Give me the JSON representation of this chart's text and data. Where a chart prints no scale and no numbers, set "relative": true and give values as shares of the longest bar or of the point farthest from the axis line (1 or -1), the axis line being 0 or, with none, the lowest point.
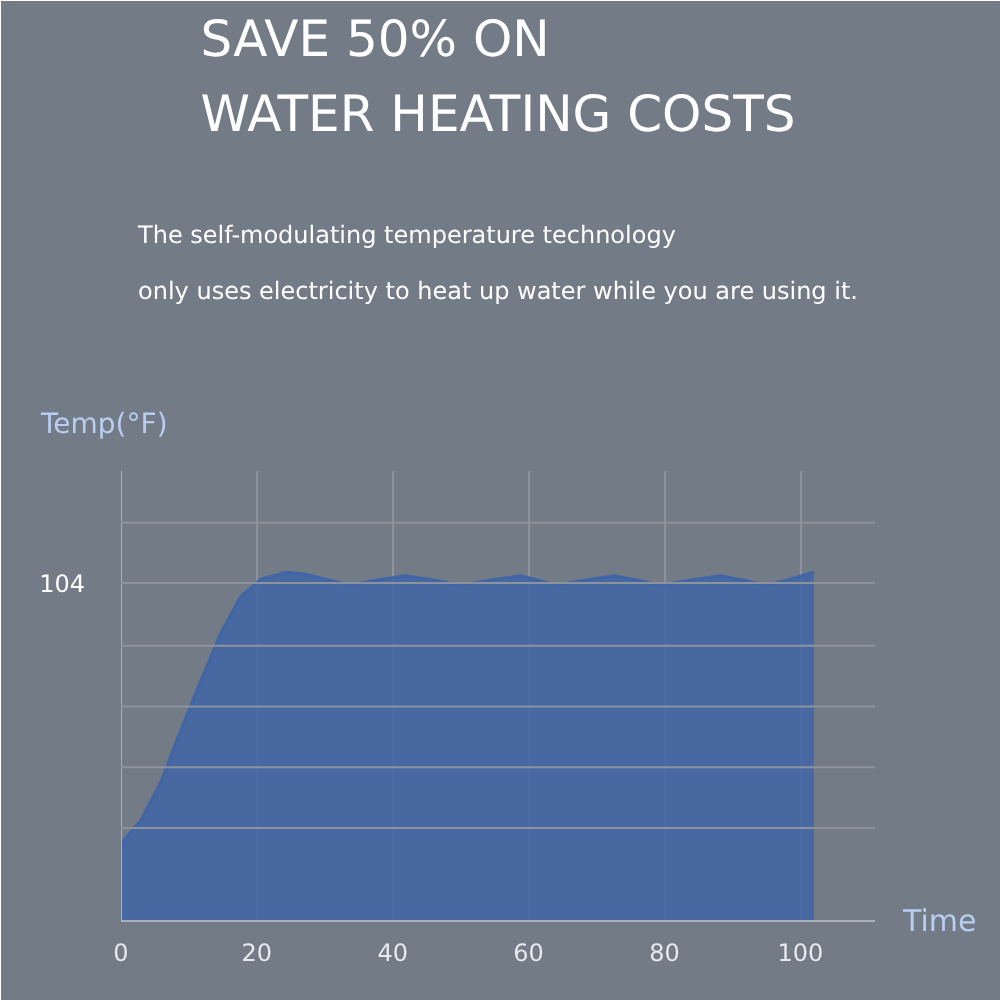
{
  "chart_data": {
    "type": "area",
    "title": "SAVE 50% ON\nWATER HEATING COSTS",
    "subtitle": "The self-modulating temperature technology\nonly uses electricity to heat up water while you are using it.",
    "xlabel": "Time",
    "ylabel": "Temp(°F)",
    "relative": true,
    "x": [
      0,
      2.9,
      5.9,
      8.8,
      11.8,
      14.7,
      17.6,
      20.6,
      24.4,
      27,
      30.5,
      33.8,
      37.8,
      41.8,
      45.9,
      50,
      54.4,
      58.8,
      61.4,
      64,
      68.3,
      72.6,
      76,
      79.4,
      83.8,
      88.2,
      91.6,
      95,
      98.5,
      102
    ],
    "series": [
      {
        "color": "#4065a6",
        "values": [
          0.222,
          0.288,
          0.4,
          0.547,
          0.69,
          0.826,
          0.93,
          0.98,
          1.0,
          0.995,
          0.978,
          0.963,
          0.978,
          0.99,
          0.978,
          0.963,
          0.977,
          0.99,
          0.977,
          0.963,
          0.977,
          0.99,
          0.977,
          0.963,
          0.977,
          0.99,
          0.977,
          0.963,
          0.98,
          1.0
        ]
      }
    ],
    "xlim": [
      0,
      111
    ],
    "xticks": [
      0,
      20,
      40,
      60,
      80,
      100
    ],
    "grid": "x",
    "annotations": [
      "104"
    ],
    "ref_lines": [
      {
        "axis": "y",
        "value": 1.142,
        "label": null,
        "color": "#8c939c"
      },
      {
        "axis": "y",
        "value": 0.969,
        "label": null,
        "color": "#8c939c"
      },
      {
        "axis": "y",
        "value": 0.789,
        "label": null,
        "color": "#8c939c"
      },
      {
        "axis": "y",
        "value": 0.615,
        "label": null,
        "color": "#8c939c"
      },
      {
        "axis": "y",
        "value": 0.441,
        "label": null,
        "color": "#8c939c"
      },
      {
        "axis": "y",
        "value": 0.267,
        "label": null,
        "color": "#8c939c"
      }
    ]
  }
}
